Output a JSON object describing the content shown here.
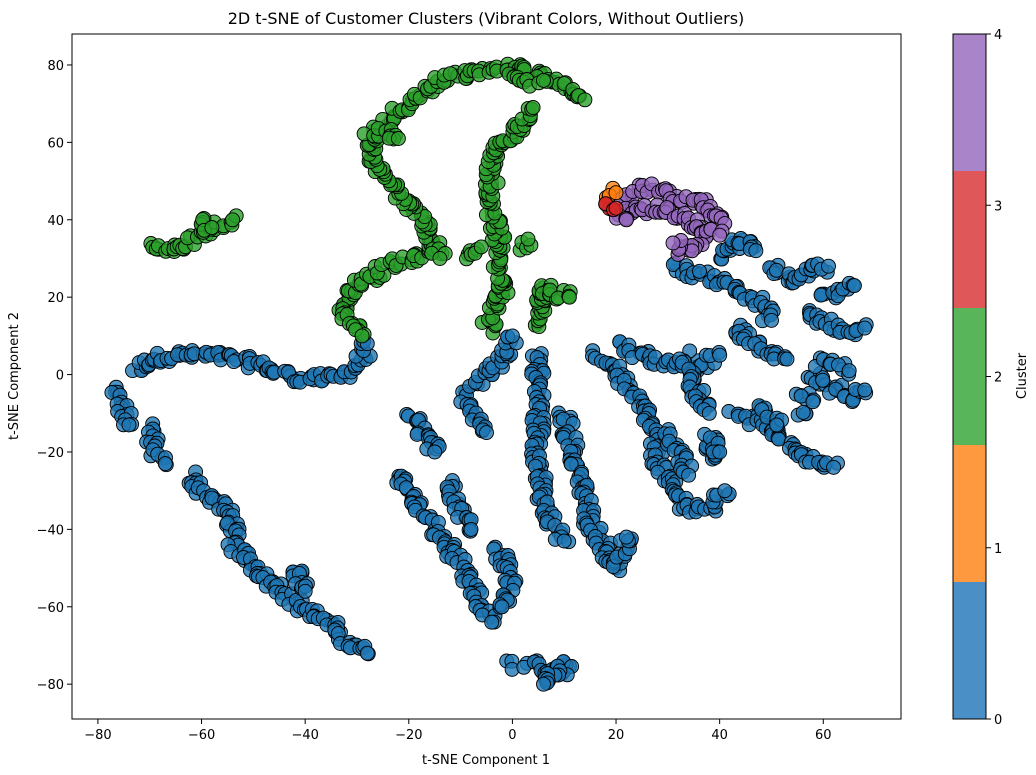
{
  "chart_data": {
    "type": "scatter",
    "title": "2D t-SNE of Customer Clusters (Vibrant Colors, Without Outliers)",
    "xlabel": "t-SNE Component 1",
    "ylabel": "t-SNE Component 2",
    "xlim": [
      -85,
      75
    ],
    "ylim": [
      -89,
      88
    ],
    "xticks": [
      -80,
      -60,
      -40,
      -20,
      0,
      20,
      40,
      60
    ],
    "yticks": [
      -80,
      -60,
      -40,
      -20,
      0,
      20,
      40,
      60,
      80
    ],
    "grid": false,
    "marker": {
      "shape": "circle",
      "edgecolor": "#000000"
    },
    "colorbar": {
      "label": "Cluster",
      "ticks": [
        0,
        1,
        2,
        3,
        4
      ],
      "range": [
        0,
        4
      ],
      "colors": [
        "#4a90c6",
        "#ff993f",
        "#59b559",
        "#df5758",
        "#a984c9"
      ]
    },
    "clusters": [
      {
        "cluster": 0,
        "color": "#1f77b4",
        "polylines": [
          [
            [
              -77,
              -4
            ],
            [
              -75,
              -10
            ],
            [
              -74,
              -13
            ]
          ],
          [
            [
              -73,
              1
            ],
            [
              -70,
              4
            ],
            [
              -65,
              5
            ],
            [
              -58,
              5
            ],
            [
              -53,
              4
            ],
            [
              -48,
              2
            ],
            [
              -44,
              0
            ],
            [
              -40,
              -1
            ],
            [
              -35,
              -1
            ],
            [
              -31,
              1
            ],
            [
              -29,
              5
            ],
            [
              -28,
              8
            ]
          ],
          [
            [
              -70,
              -14
            ],
            [
              -69,
              -20
            ],
            [
              -67,
              -23
            ]
          ],
          [
            [
              -62,
              -26
            ],
            [
              -60,
              -30
            ],
            [
              -56,
              -34
            ],
            [
              -54,
              -38
            ],
            [
              -54,
              -44
            ],
            [
              -50,
              -49
            ],
            [
              -47,
              -53
            ],
            [
              -44,
              -56
            ],
            [
              -41,
              -60
            ],
            [
              -37,
              -63
            ],
            [
              -34,
              -66
            ],
            [
              -31,
              -70
            ],
            [
              -28,
              -72
            ]
          ],
          [
            [
              -43,
              -50
            ],
            [
              -41,
              -52
            ],
            [
              -40,
              -56
            ]
          ],
          [
            [
              -22,
              -25
            ],
            [
              -20,
              -30
            ],
            [
              -18,
              -35
            ],
            [
              -15,
              -40
            ],
            [
              -12,
              -45
            ],
            [
              -10,
              -50
            ],
            [
              -8,
              -55
            ],
            [
              -6,
              -60
            ],
            [
              -4,
              -64
            ]
          ],
          [
            [
              -20,
              -10
            ],
            [
              -17,
              -15
            ],
            [
              -15,
              -20
            ]
          ],
          [
            [
              -10,
              -5
            ],
            [
              -8,
              -8
            ],
            [
              -6,
              -12
            ],
            [
              -5,
              -15
            ]
          ],
          [
            [
              -12,
              -28
            ],
            [
              -10,
              -35
            ],
            [
              -8,
              -40
            ]
          ],
          [
            [
              -7,
              -2
            ],
            [
              -4,
              1
            ],
            [
              -2,
              4
            ],
            [
              -1,
              7
            ],
            [
              0,
              10
            ]
          ],
          [
            [
              -3,
              -45
            ],
            [
              -1,
              -50
            ],
            [
              0,
              -55
            ],
            [
              -2,
              -60
            ]
          ],
          [
            [
              0,
              -75
            ],
            [
              3,
              -75
            ],
            [
              6,
              -76
            ],
            [
              9,
              -77
            ],
            [
              11,
              -75
            ],
            [
              6,
              -80
            ]
          ],
          [
            [
              5,
              5
            ],
            [
              5,
              -5
            ],
            [
              5,
              -15
            ],
            [
              5,
              -25
            ],
            [
              6,
              -35
            ],
            [
              8,
              -40
            ],
            [
              10,
              -43
            ]
          ],
          [
            [
              10,
              -10
            ],
            [
              12,
              -22
            ],
            [
              14,
              -32
            ],
            [
              15,
              -38
            ],
            [
              18,
              -45
            ],
            [
              20,
              -50
            ],
            [
              22,
              -42
            ]
          ],
          [
            [
              16,
              5
            ],
            [
              20,
              2
            ],
            [
              22,
              -3
            ],
            [
              25,
              -8
            ],
            [
              27,
              -15
            ],
            [
              28,
              -22
            ],
            [
              30,
              -28
            ],
            [
              32,
              -32
            ],
            [
              35,
              -35
            ],
            [
              38,
              -34
            ],
            [
              41,
              -30
            ]
          ],
          [
            [
              21,
              8
            ],
            [
              25,
              5
            ],
            [
              30,
              3
            ],
            [
              35,
              2
            ],
            [
              40,
              5
            ]
          ],
          [
            [
              29,
              -15
            ],
            [
              32,
              -20
            ],
            [
              34,
              -26
            ]
          ],
          [
            [
              33,
              5
            ],
            [
              35,
              -3
            ],
            [
              38,
              -10
            ]
          ],
          [
            [
              38,
              -22
            ],
            [
              38,
              -16
            ],
            [
              40,
              -20
            ]
          ],
          [
            [
              31,
              28
            ],
            [
              35,
              26
            ],
            [
              39,
              25
            ],
            [
              44,
              22
            ],
            [
              48,
              18
            ],
            [
              50,
              14
            ]
          ],
          [
            [
              40,
              30
            ],
            [
              44,
              35
            ],
            [
              47,
              32
            ]
          ],
          [
            [
              43,
              12
            ],
            [
              46,
              8
            ],
            [
              50,
              6
            ],
            [
              53,
              4
            ]
          ],
          [
            [
              50,
              28
            ],
            [
              53,
              25
            ],
            [
              55,
              24
            ],
            [
              58,
              27
            ],
            [
              61,
              28
            ]
          ],
          [
            [
              43,
              -10
            ],
            [
              47,
              -12
            ],
            [
              50,
              -15
            ],
            [
              54,
              -18
            ],
            [
              58,
              -22
            ],
            [
              62,
              -24
            ]
          ],
          [
            [
              48,
              -8
            ],
            [
              51,
              -13
            ]
          ],
          [
            [
              56,
              -11
            ]
          ],
          [
            [
              57,
              16
            ],
            [
              60,
              14
            ],
            [
              63,
              12
            ],
            [
              66,
              10
            ],
            [
              68,
              12
            ]
          ],
          [
            [
              59,
              20
            ],
            [
              63,
              21
            ],
            [
              66,
              23
            ]
          ],
          [
            [
              58,
              0
            ],
            [
              60,
              -2
            ],
            [
              63,
              -4
            ],
            [
              66,
              -6
            ],
            [
              68,
              -4
            ]
          ],
          [
            [
              59,
              3
            ],
            [
              63,
              2
            ],
            [
              65,
              1
            ]
          ],
          [
            [
              55,
              -5
            ],
            [
              58,
              -7
            ]
          ]
        ]
      },
      {
        "cluster": 2,
        "color": "#2ca02c",
        "polylines": [
          [
            [
              -70,
              33
            ],
            [
              -67,
              32
            ],
            [
              -64,
              33
            ],
            [
              -62,
              35
            ],
            [
              -60,
              37
            ],
            [
              -57,
              39
            ],
            [
              -54,
              40
            ]
          ],
          [
            [
              -60,
              40
            ],
            [
              -58,
              38
            ]
          ],
          [
            [
              -33,
              17
            ],
            [
              -31,
              22
            ],
            [
              -27,
              26
            ],
            [
              -22,
              29
            ],
            [
              -17,
              31
            ],
            [
              -15,
              33
            ],
            [
              -17,
              40
            ],
            [
              -21,
              45
            ],
            [
              -24,
              49
            ],
            [
              -26,
              53
            ],
            [
              -28,
              58
            ],
            [
              -26,
              62
            ],
            [
              -24,
              65
            ],
            [
              -22,
              68
            ],
            [
              -19,
              71
            ],
            [
              -16,
              74
            ],
            [
              -12,
              77
            ],
            [
              -7,
              78
            ],
            [
              -3,
              79
            ],
            [
              2,
              79
            ],
            [
              6,
              77
            ],
            [
              9,
              75
            ],
            [
              12,
              73
            ],
            [
              14,
              71
            ]
          ],
          [
            [
              -33,
              17
            ],
            [
              -31,
              14
            ],
            [
              -29,
              10
            ]
          ],
          [
            [
              -15,
              33
            ],
            [
              -14,
              30
            ]
          ],
          [
            [
              -28,
              63
            ],
            [
              -24,
              62
            ],
            [
              -22,
              61
            ]
          ],
          [
            [
              -5,
              12
            ],
            [
              -4,
              15
            ],
            [
              -3,
              18
            ],
            [
              -2,
              21
            ],
            [
              -3,
              28
            ],
            [
              -2,
              32
            ],
            [
              -3,
              38
            ],
            [
              -4,
              43
            ],
            [
              -4,
              48
            ],
            [
              -4,
              53
            ],
            [
              -4,
              57
            ],
            [
              -1,
              60
            ],
            [
              1,
              63
            ],
            [
              2,
              66
            ],
            [
              4,
              69
            ]
          ],
          [
            [
              2,
              33
            ],
            [
              3,
              35
            ]
          ],
          [
            [
              5,
              12
            ],
            [
              5,
              18
            ],
            [
              6,
              23
            ],
            [
              7,
              20
            ],
            [
              9,
              21
            ],
            [
              11,
              20
            ]
          ],
          [
            [
              0,
              77
            ],
            [
              3,
              75
            ],
            [
              6,
              76
            ]
          ],
          [
            [
              -8,
              30
            ],
            [
              -6,
              33
            ]
          ]
        ]
      },
      {
        "cluster": 4,
        "color": "#9467bd",
        "polylines": [
          [
            [
              21,
              46
            ],
            [
              24,
              48
            ],
            [
              28,
              48
            ],
            [
              31,
              46
            ],
            [
              34,
              45
            ],
            [
              37,
              44
            ],
            [
              39,
              41
            ],
            [
              41,
              39
            ]
          ],
          [
            [
              22,
              43
            ],
            [
              25,
              42
            ],
            [
              28,
              43
            ],
            [
              31,
              42
            ],
            [
              34,
              40
            ],
            [
              36,
              38
            ],
            [
              37,
              35
            ],
            [
              35,
              33
            ],
            [
              33,
              32
            ],
            [
              31,
              34
            ]
          ],
          [
            [
              20,
              42
            ],
            [
              22,
              40
            ]
          ],
          [
            [
              38,
              37
            ],
            [
              40,
              36
            ]
          ]
        ]
      },
      {
        "cluster": 1,
        "color": "#ff7f0e",
        "polylines": [
          [
            [
              18,
              47
            ],
            [
              20,
              47
            ]
          ]
        ]
      },
      {
        "cluster": 3,
        "color": "#d62728",
        "polylines": [
          [
            [
              18,
              43
            ],
            [
              20,
              43
            ]
          ]
        ]
      }
    ]
  }
}
